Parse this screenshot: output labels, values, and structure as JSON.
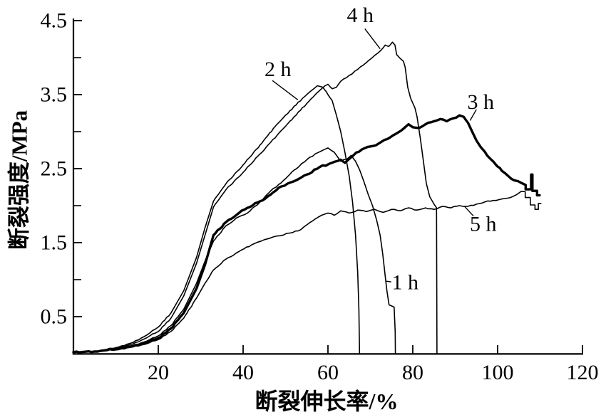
{
  "figure": {
    "background": "#ffffff",
    "line_color": "#000000"
  },
  "chart_data": {
    "type": "line",
    "title": "",
    "xlabel": "断裂伸长率/%",
    "ylabel": "断裂强度/MPa",
    "xlim": [
      0,
      120
    ],
    "ylim": [
      0,
      4.5
    ],
    "x_ticks": [
      20,
      40,
      60,
      80,
      100,
      120
    ],
    "y_ticks": [
      0.5,
      1.5,
      2.5,
      3.5,
      4.5
    ],
    "y_minor_ticks": [
      1,
      2,
      3,
      4
    ],
    "grid": false,
    "legend_position": "inline-annotations",
    "series": [
      {
        "name": "1 h",
        "thick": false,
        "points": [
          [
            0,
            0.02
          ],
          [
            5,
            0.03
          ],
          [
            10,
            0.06
          ],
          [
            14,
            0.11
          ],
          [
            18,
            0.19
          ],
          [
            20,
            0.24
          ],
          [
            23,
            0.38
          ],
          [
            26,
            0.6
          ],
          [
            29,
            0.95
          ],
          [
            31,
            1.25
          ],
          [
            33,
            1.52
          ],
          [
            36,
            1.73
          ],
          [
            39,
            1.85
          ],
          [
            41,
            1.9
          ],
          [
            44,
            2.05
          ],
          [
            46.5,
            2.2
          ],
          [
            49,
            2.31
          ],
          [
            52,
            2.48
          ],
          [
            55,
            2.62
          ],
          [
            57,
            2.7
          ],
          [
            58.5,
            2.74
          ],
          [
            60,
            2.78
          ],
          [
            61.5,
            2.72
          ],
          [
            63,
            2.6
          ],
          [
            64.5,
            2.63
          ],
          [
            65.5,
            2.68
          ],
          [
            66.5,
            2.6
          ],
          [
            67.5,
            2.48
          ],
          [
            68.5,
            2.32
          ],
          [
            69.5,
            2.15
          ],
          [
            70.5,
            2.0
          ],
          [
            71.5,
            1.8
          ],
          [
            72.3,
            1.6
          ],
          [
            72.9,
            1.35
          ],
          [
            73.4,
            1.1
          ],
          [
            73.9,
            0.85
          ],
          [
            74.4,
            0.66
          ],
          [
            75.6,
            0.63
          ],
          [
            75.85,
            0.3
          ],
          [
            75.9,
            0
          ]
        ]
      },
      {
        "name": "2 h",
        "thick": false,
        "points": [
          [
            0,
            0.02
          ],
          [
            5,
            0.03
          ],
          [
            10,
            0.08
          ],
          [
            14,
            0.15
          ],
          [
            18,
            0.28
          ],
          [
            20,
            0.36
          ],
          [
            23,
            0.55
          ],
          [
            26,
            0.85
          ],
          [
            29,
            1.3
          ],
          [
            31,
            1.7
          ],
          [
            33,
            2.06
          ],
          [
            36,
            2.3
          ],
          [
            40,
            2.55
          ],
          [
            44,
            2.82
          ],
          [
            48,
            3.1
          ],
          [
            51,
            3.28
          ],
          [
            54,
            3.45
          ],
          [
            56,
            3.55
          ],
          [
            57.5,
            3.62
          ],
          [
            58.8,
            3.6
          ],
          [
            60,
            3.5
          ],
          [
            61,
            3.42
          ],
          [
            62,
            3.22
          ],
          [
            63,
            3.0
          ],
          [
            64,
            2.72
          ],
          [
            65,
            2.4
          ],
          [
            65.8,
            2.05
          ],
          [
            66.5,
            1.6
          ],
          [
            67,
            1.1
          ],
          [
            67.3,
            0.6
          ],
          [
            67.45,
            0
          ]
        ]
      },
      {
        "name": "3 h",
        "thick": true,
        "points": [
          [
            0,
            0.02
          ],
          [
            5,
            0.03
          ],
          [
            10,
            0.06
          ],
          [
            14,
            0.1
          ],
          [
            18,
            0.17
          ],
          [
            20,
            0.21
          ],
          [
            23,
            0.34
          ],
          [
            26,
            0.55
          ],
          [
            29,
            0.88
          ],
          [
            31,
            1.2
          ],
          [
            33,
            1.6
          ],
          [
            36,
            1.78
          ],
          [
            39,
            1.9
          ],
          [
            41,
            1.97
          ],
          [
            44,
            2.06
          ],
          [
            46.5,
            2.15
          ],
          [
            49,
            2.26
          ],
          [
            52,
            2.33
          ],
          [
            55,
            2.42
          ],
          [
            58,
            2.52
          ],
          [
            61,
            2.58
          ],
          [
            63,
            2.62
          ],
          [
            64,
            2.58
          ],
          [
            66,
            2.68
          ],
          [
            68,
            2.76
          ],
          [
            70,
            2.8
          ],
          [
            72,
            2.84
          ],
          [
            74,
            2.9
          ],
          [
            76,
            2.97
          ],
          [
            78,
            3.05
          ],
          [
            79,
            3.1
          ],
          [
            80,
            3.06
          ],
          [
            81.5,
            3.05
          ],
          [
            83,
            3.1
          ],
          [
            85,
            3.14
          ],
          [
            86.5,
            3.17
          ],
          [
            88,
            3.14
          ],
          [
            89.5,
            3.18
          ],
          [
            91,
            3.22
          ],
          [
            92,
            3.2
          ],
          [
            93,
            3.12
          ],
          [
            94,
            3.0
          ],
          [
            95,
            2.88
          ],
          [
            96.5,
            2.76
          ],
          [
            98,
            2.65
          ],
          [
            99.5,
            2.56
          ],
          [
            101,
            2.47
          ],
          [
            102.5,
            2.4
          ],
          [
            104,
            2.34
          ],
          [
            105.5,
            2.31
          ],
          [
            106.6,
            2.28
          ],
          [
            106.6,
            2.22
          ],
          [
            107.9,
            2.22
          ],
          [
            107.9,
            2.42
          ],
          [
            108.2,
            2.42
          ],
          [
            108.2,
            2.2
          ],
          [
            109.3,
            2.2
          ],
          [
            109.3,
            2.14
          ],
          [
            109.9,
            2.14
          ]
        ]
      },
      {
        "name": "4 h",
        "thick": false,
        "points": [
          [
            0,
            0.02
          ],
          [
            5,
            0.03
          ],
          [
            10,
            0.07
          ],
          [
            14,
            0.13
          ],
          [
            18,
            0.24
          ],
          [
            20,
            0.3
          ],
          [
            23,
            0.48
          ],
          [
            26,
            0.78
          ],
          [
            29,
            1.22
          ],
          [
            31,
            1.6
          ],
          [
            33,
            1.98
          ],
          [
            36,
            2.22
          ],
          [
            40,
            2.45
          ],
          [
            44,
            2.7
          ],
          [
            48,
            2.95
          ],
          [
            52,
            3.2
          ],
          [
            55,
            3.38
          ],
          [
            57,
            3.5
          ],
          [
            58.5,
            3.58
          ],
          [
            60,
            3.64
          ],
          [
            61,
            3.58
          ],
          [
            62,
            3.6
          ],
          [
            63,
            3.68
          ],
          [
            65,
            3.76
          ],
          [
            67,
            3.84
          ],
          [
            69,
            3.93
          ],
          [
            71,
            4.03
          ],
          [
            72.5,
            4.1
          ],
          [
            73.5,
            4.17
          ],
          [
            74.3,
            4.15
          ],
          [
            75.2,
            4.21
          ],
          [
            75.8,
            4.17
          ],
          [
            76.2,
            4.04
          ],
          [
            77,
            3.99
          ],
          [
            77.8,
            3.95
          ],
          [
            78.2,
            3.87
          ],
          [
            78.8,
            3.6
          ],
          [
            79.5,
            3.45
          ],
          [
            80.5,
            3.32
          ],
          [
            81,
            3.2
          ],
          [
            81.8,
            2.9
          ],
          [
            82.5,
            2.6
          ],
          [
            83.2,
            2.3
          ],
          [
            84,
            2.12
          ],
          [
            85,
            2.02
          ],
          [
            85.6,
            1.97
          ],
          [
            85.7,
            0
          ]
        ]
      },
      {
        "name": "5 h",
        "thick": false,
        "points": [
          [
            0,
            0.02
          ],
          [
            5,
            0.03
          ],
          [
            10,
            0.05
          ],
          [
            14,
            0.09
          ],
          [
            18,
            0.15
          ],
          [
            20,
            0.19
          ],
          [
            23,
            0.3
          ],
          [
            26,
            0.48
          ],
          [
            29,
            0.75
          ],
          [
            31,
            0.95
          ],
          [
            33,
            1.13
          ],
          [
            36,
            1.28
          ],
          [
            39,
            1.38
          ],
          [
            42,
            1.47
          ],
          [
            45,
            1.54
          ],
          [
            48,
            1.59
          ],
          [
            51,
            1.63
          ],
          [
            53,
            1.66
          ],
          [
            55,
            1.74
          ],
          [
            57,
            1.82
          ],
          [
            58.5,
            1.87
          ],
          [
            60,
            1.9
          ],
          [
            61.5,
            1.87
          ],
          [
            63,
            1.93
          ],
          [
            65,
            1.9
          ],
          [
            67,
            1.94
          ],
          [
            69,
            1.92
          ],
          [
            71,
            1.95
          ],
          [
            73,
            1.91
          ],
          [
            75,
            1.95
          ],
          [
            77,
            1.93
          ],
          [
            79,
            1.97
          ],
          [
            81,
            1.94
          ],
          [
            83,
            1.97
          ],
          [
            85,
            1.95
          ],
          [
            87,
            1.99
          ],
          [
            89,
            1.97
          ],
          [
            91,
            2.0
          ],
          [
            93,
            1.99
          ],
          [
            95,
            2.02
          ],
          [
            97,
            2.05
          ],
          [
            99,
            2.07
          ],
          [
            101,
            2.09
          ],
          [
            103,
            2.11
          ],
          [
            104.5,
            2.15
          ],
          [
            105.5,
            2.19
          ],
          [
            106.5,
            2.19
          ],
          [
            106.5,
            2.11
          ],
          [
            107.7,
            2.11
          ],
          [
            107.7,
            2.01
          ],
          [
            108.8,
            2.01
          ],
          [
            108.8,
            1.95
          ],
          [
            109.6,
            1.95
          ],
          [
            109.6,
            2.03
          ],
          [
            110.2,
            2.03
          ]
        ]
      }
    ],
    "annotations": [
      {
        "text": "1 h",
        "x": 78.2,
        "y": 0.96,
        "leader": [
          [
            73.6,
            0.98
          ],
          [
            74.9,
            0.97
          ]
        ]
      },
      {
        "text": "2 h",
        "x": 48.2,
        "y": 3.84,
        "leader": [
          [
            46.9,
            3.69
          ],
          [
            52.9,
            3.43
          ]
        ]
      },
      {
        "text": "3 h",
        "x": 96.0,
        "y": 3.4,
        "leader": [
          [
            95.0,
            3.3
          ],
          [
            93.5,
            3.15
          ]
        ]
      },
      {
        "text": "4 h",
        "x": 67.6,
        "y": 4.57,
        "leader": [
          [
            68.7,
            4.39
          ],
          [
            72.3,
            4.12
          ]
        ]
      },
      {
        "text": "5 h",
        "x": 96.6,
        "y": 1.75,
        "leader": [
          [
            94.3,
            1.86
          ],
          [
            92.2,
            1.99
          ]
        ]
      }
    ]
  }
}
